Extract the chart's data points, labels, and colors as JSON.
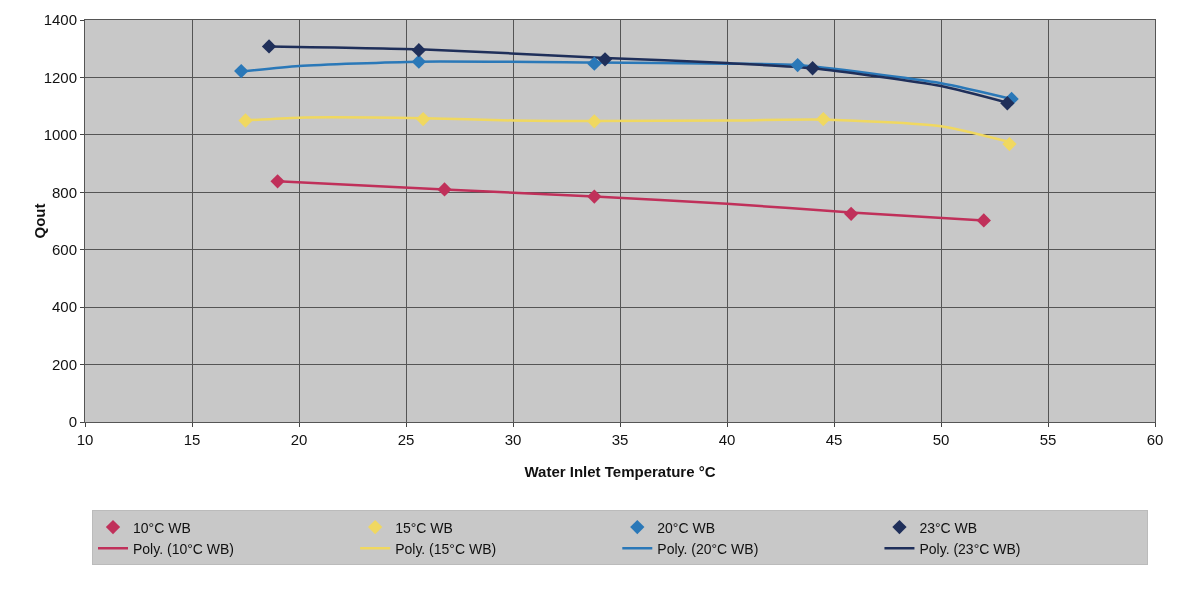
{
  "chart_data": {
    "type": "scatter",
    "xlabel": "Water Inlet Temperature °C",
    "ylabel": "Qout",
    "xlim": [
      10,
      60
    ],
    "xticks": [
      10,
      15,
      20,
      25,
      30,
      35,
      40,
      45,
      50,
      55,
      60
    ],
    "ylim": [
      0,
      1400
    ],
    "yticks": [
      0,
      200,
      400,
      600,
      800,
      1000,
      1200,
      1400
    ],
    "grid": true,
    "legend": "bottom",
    "marker": "diamond",
    "series": [
      {
        "name": "10°C WB",
        "color": "#c0305a",
        "x": [
          19.0,
          26.8,
          33.8,
          45.8,
          52.0
        ],
        "values": [
          838,
          810,
          785,
          725,
          702
        ]
      },
      {
        "name": "15°C WB",
        "color": "#f0d860",
        "x": [
          17.5,
          25.8,
          33.8,
          44.5,
          53.2
        ],
        "values": [
          1050,
          1055,
          1047,
          1055,
          968
        ]
      },
      {
        "name": "20°C WB",
        "color": "#2a78b8",
        "x": [
          17.3,
          25.6,
          33.8,
          43.3,
          53.3
        ],
        "values": [
          1222,
          1255,
          1248,
          1243,
          1125
        ]
      },
      {
        "name": "23°C WB",
        "color": "#1f2f5a",
        "x": [
          18.6,
          25.6,
          34.3,
          44.0,
          53.1
        ],
        "values": [
          1308,
          1295,
          1263,
          1232,
          1110
        ]
      },
      {
        "name": "Poly. (10°C WB)",
        "type": "line",
        "marker": "none",
        "color": "#c0305a",
        "x": [
          19,
          26.8,
          33.8,
          40,
          45.8,
          52
        ],
        "values": [
          838,
          810,
          785,
          760,
          730,
          702
        ]
      },
      {
        "name": "Poly. (15°C WB)",
        "type": "line",
        "marker": "none",
        "color": "#f0d860",
        "x": [
          17.5,
          20,
          25.8,
          30,
          33.8,
          40,
          44.5,
          50,
          53.2
        ],
        "values": [
          1050,
          1060,
          1058,
          1050,
          1048,
          1050,
          1053,
          1030,
          975
        ]
      },
      {
        "name": "Poly. (20°C WB)",
        "type": "line",
        "marker": "none",
        "color": "#2a78b8",
        "x": [
          17.3,
          20,
          25.6,
          33.8,
          40,
          43.3,
          50,
          53.3
        ],
        "values": [
          1220,
          1240,
          1255,
          1252,
          1248,
          1243,
          1180,
          1125
        ]
      },
      {
        "name": "Poly. (23°C WB)",
        "type": "line",
        "marker": "none",
        "color": "#1f2f5a",
        "x": [
          18.6,
          25.6,
          34.3,
          40,
          44,
          50,
          53.1
        ],
        "values": [
          1308,
          1298,
          1268,
          1250,
          1232,
          1170,
          1112
        ]
      }
    ]
  }
}
